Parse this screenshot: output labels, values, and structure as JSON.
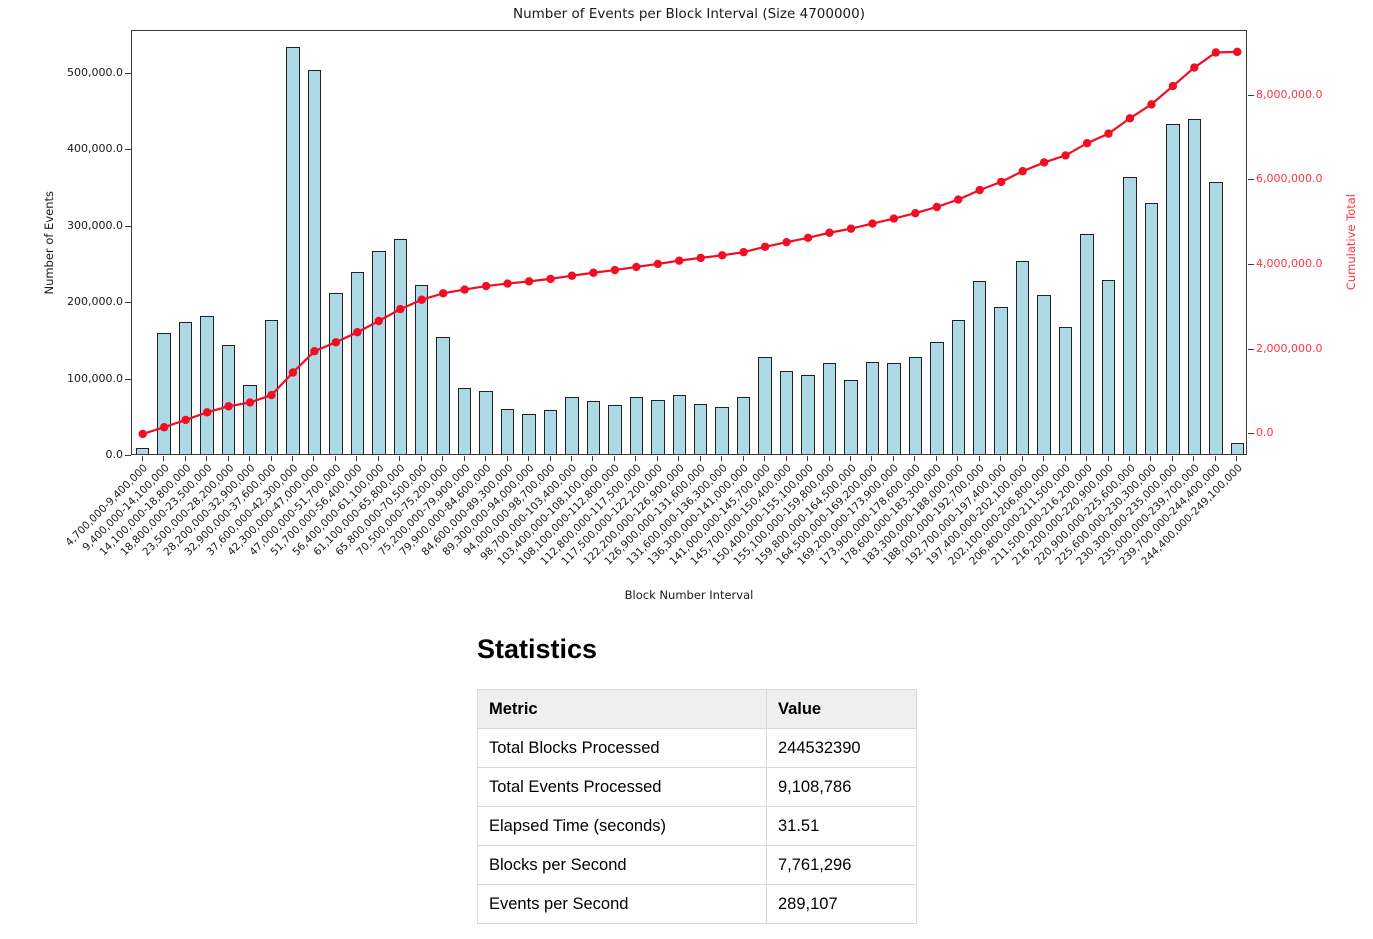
{
  "chart_data": {
    "type": "bar",
    "title": "Number of Events per Block Interval (Size 4700000)",
    "xlabel": "Block Number Interval",
    "ylabel_left": "Number of Events",
    "ylabel_right": "Cumulative Total",
    "grid": false,
    "legend": "none",
    "categories": [
      "4,700,000-9,400,000",
      "9,400,000-14,100,000",
      "14,100,000-18,800,000",
      "18,800,000-23,500,000",
      "23,500,000-28,200,000",
      "28,200,000-32,900,000",
      "32,900,000-37,600,000",
      "37,600,000-42,300,000",
      "42,300,000-47,000,000",
      "47,000,000-51,700,000",
      "51,700,000-56,400,000",
      "56,400,000-61,100,000",
      "61,100,000-65,800,000",
      "65,800,000-70,500,000",
      "70,500,000-75,200,000",
      "75,200,000-79,900,000",
      "79,900,000-84,600,000",
      "84,600,000-89,300,000",
      "89,300,000-94,000,000",
      "94,000,000-98,700,000",
      "98,700,000-103,400,000",
      "103,400,000-108,100,000",
      "108,100,000-112,800,000",
      "112,800,000-117,500,000",
      "117,500,000-122,200,000",
      "122,200,000-126,900,000",
      "126,900,000-131,600,000",
      "131,600,000-136,300,000",
      "136,300,000-141,000,000",
      "141,000,000-145,700,000",
      "145,700,000-150,400,000",
      "150,400,000-155,100,000",
      "155,100,000-159,800,000",
      "159,800,000-164,500,000",
      "164,500,000-169,200,000",
      "169,200,000-173,900,000",
      "173,900,000-178,600,000",
      "178,600,000-183,300,000",
      "183,300,000-188,000,000",
      "188,000,000-192,700,000",
      "192,700,000-197,400,000",
      "197,400,000-202,100,000",
      "202,100,000-206,800,000",
      "206,800,000-211,500,000",
      "211,500,000-216,200,000",
      "216,200,000-220,900,000",
      "220,900,000-225,600,000",
      "225,600,000-230,300,000",
      "230,300,000-235,000,000",
      "235,000,000-239,700,000",
      "239,700,000-244,400,000",
      "244,400,000-249,100,000"
    ],
    "series": [
      {
        "name": "Number of Events",
        "type": "bar",
        "axis": "left",
        "values": [
          8200,
          158000,
          173000,
          180000,
          143000,
          90000,
          175000,
          533000,
          503000,
          211000,
          238000,
          265000,
          281000,
          221000,
          153000,
          87000,
          83000,
          59000,
          53000,
          58000,
          75000,
          70000,
          64000,
          74000,
          71000,
          77000,
          65000,
          61000,
          75000,
          127000,
          109000,
          103000,
          119000,
          97000,
          120000,
          119000,
          127000,
          146000,
          175000,
          226000,
          192000,
          252000,
          208000,
          166000,
          288000,
          227000,
          362000,
          329000,
          432000,
          438000,
          356000,
          15000
        ]
      },
      {
        "name": "Cumulative Total",
        "type": "line",
        "axis": "right",
        "values": [
          8200,
          166200,
          339200,
          519200,
          662200,
          752200,
          927200,
          1460200,
          1963200,
          2174200,
          2412200,
          2677200,
          2958200,
          3179200,
          3332200,
          3419200,
          3502200,
          3561200,
          3614200,
          3672200,
          3747200,
          3817200,
          3881200,
          3955200,
          4026200,
          4103200,
          4168200,
          4229200,
          4304200,
          4431200,
          4540200,
          4643200,
          4762200,
          4859200,
          4979200,
          5098200,
          5225200,
          5371200,
          5546200,
          5772200,
          5964200,
          6216200,
          6424200,
          6590200,
          6878200,
          7105200,
          7467200,
          7796200,
          8228200,
          8666200,
          9022200,
          9037200
        ]
      }
    ],
    "ylim_left": [
      0,
      556000
    ],
    "ylim_right": [
      -513000,
      9530000
    ],
    "yticks_left": [
      {
        "value": 0,
        "label": "0.0"
      },
      {
        "value": 100000,
        "label": "100,000.0"
      },
      {
        "value": 200000,
        "label": "200,000.0"
      },
      {
        "value": 300000,
        "label": "300,000.0"
      },
      {
        "value": 400000,
        "label": "400,000.0"
      },
      {
        "value": 500000,
        "label": "500,000.0"
      }
    ],
    "yticks_right": [
      {
        "value": 0,
        "label": "0.0"
      },
      {
        "value": 2000000,
        "label": "2,000,000.0"
      },
      {
        "value": 4000000,
        "label": "4,000,000.0"
      },
      {
        "value": 6000000,
        "label": "6,000,000.0"
      },
      {
        "value": 8000000,
        "label": "8,000,000.0"
      }
    ],
    "colors": {
      "bar_fill": "#ADD8E6",
      "bar_edge": "#222222",
      "line": "#f20d23",
      "right_axis_text": "#ff3342",
      "axis_text": "#1a1a1a"
    }
  },
  "stats": {
    "heading": "Statistics",
    "table": {
      "headers": [
        "Metric",
        "Value"
      ],
      "rows": [
        [
          "Total Blocks Processed",
          "244532390"
        ],
        [
          "Total Events Processed",
          "9,108,786"
        ],
        [
          "Elapsed Time (seconds)",
          "31.51"
        ],
        [
          "Blocks per Second",
          "7,761,296"
        ],
        [
          "Events per Second",
          "289,107"
        ]
      ]
    }
  }
}
